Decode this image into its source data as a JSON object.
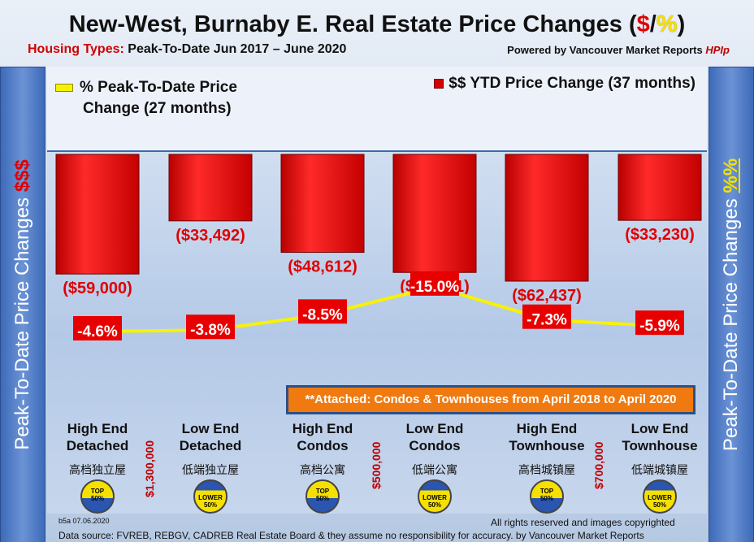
{
  "title": {
    "prefix": "New-West, Burnaby E. Real Estate Price Changes (",
    "dollar": "$",
    "slash": "/",
    "pct": "%",
    "suffix": ")"
  },
  "subtitle": {
    "label": "Housing Types:",
    "text": "Peak-To-Date Jun 2017 – June 2020"
  },
  "powered": {
    "text": "Powered by Vancouver Market Reports",
    "hpi": "HPIp"
  },
  "side_left": {
    "text": "Peak-To-Date Price Changes",
    "accent": "$$$"
  },
  "side_right": {
    "text": "Peak-To-Date  Price  Changes",
    "accent": "%%"
  },
  "legend": {
    "line_label": "% Peak-To-Date Price",
    "line_label2": "Change (27 months)",
    "bar_label": "$$ YTD Price Change (37 months)"
  },
  "note": "**Attached: Condos & Townhouses from April 2018 to April 2020",
  "categories": [
    {
      "line1": "High End",
      "line2": "Detached",
      "cn": "高档独立屋",
      "badge": "top"
    },
    {
      "line1": "Low End",
      "line2": "Detached",
      "cn": "低端独立屋",
      "badge": "lower"
    },
    {
      "line1": "High End",
      "line2": "Condos",
      "cn": "高档公寓",
      "badge": "top"
    },
    {
      "line1": "Low End",
      "line2": "Condos",
      "cn": "低端公寓",
      "badge": "lower"
    },
    {
      "line1": "High End",
      "line2": "Townhouse",
      "cn": "高档城镇屋",
      "badge": "top"
    },
    {
      "line1": "Low End",
      "line2": "Townhouse",
      "cn": "低端城镇屋",
      "badge": "lower"
    }
  ],
  "badges": {
    "top_line1": "TOP",
    "top_line2": "50%",
    "lower_line1": "LOWER",
    "lower_line2": "50%"
  },
  "price_tags": [
    "$1,300,000",
    "$500,000",
    "$700,000"
  ],
  "footer": {
    "code": "b5a 07.06.2020",
    "rights": "All rights reserved and  images copyrighted",
    "source": "Data source: FVREB, REBGV, CADREB Real Estate Board & they assume no responsibility for accuracy. by Vancouver Market Reports"
  },
  "colors": {
    "bar": "#d40000",
    "line": "#f8f200",
    "label_bg": "#e80000",
    "value_text": "#e00000"
  },
  "chart_data": {
    "type": "bar",
    "categories": [
      "High End Detached",
      "Low End Detached",
      "High End Condos",
      "Low End Condos",
      "High End Townhouse",
      "Low End Townhouse"
    ],
    "series": [
      {
        "name": "$$ YTD Price Change (37 months)",
        "type": "bar",
        "values": [
          -59000,
          -33492,
          -48612,
          -58241,
          -62437,
          -33230
        ],
        "labels": [
          "($59,000)",
          "($33,492)",
          "($48,612)",
          "($58,241)",
          "($62,437)",
          "($33,230)"
        ]
      },
      {
        "name": "% Peak-To-Date Price Change (27 months)",
        "type": "line",
        "values": [
          -4.6,
          -3.8,
          -8.5,
          -15.0,
          -7.3,
          -5.9
        ],
        "labels": [
          "-4.6%",
          "-3.8%",
          "-8.5%",
          "-15.0%",
          "-7.3%",
          "-5.9%"
        ]
      }
    ],
    "bar_ylim": [
      -75000,
      0
    ],
    "line_ylim": [
      -20,
      5
    ],
    "legend_position": "top"
  }
}
